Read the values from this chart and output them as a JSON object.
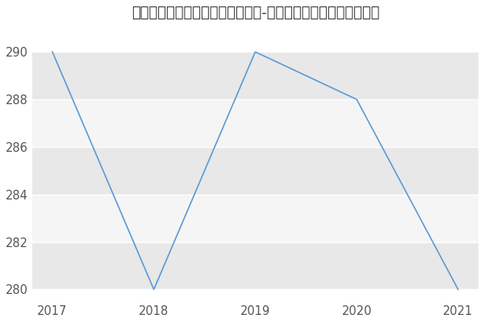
{
  "title": "四川农业大学资源学院微生物学（-历年复试）研究生录取分数线",
  "x": [
    2017,
    2018,
    2019,
    2020,
    2021
  ],
  "y": [
    290,
    280,
    290,
    288,
    280
  ],
  "line_color": "#5b9bd5",
  "background_color": "#ffffff",
  "plot_bg_color": "#ffffff",
  "band_color_dark": "#e8e8e8",
  "band_color_light": "#f5f5f5",
  "grid_color": "#ffffff",
  "ylim": [
    279.5,
    291
  ],
  "xlim": [
    2016.8,
    2021.2
  ],
  "yticks": [
    280,
    282,
    284,
    286,
    288,
    290
  ],
  "xticks": [
    2017,
    2018,
    2019,
    2020,
    2021
  ],
  "title_fontsize": 13,
  "tick_fontsize": 10.5
}
